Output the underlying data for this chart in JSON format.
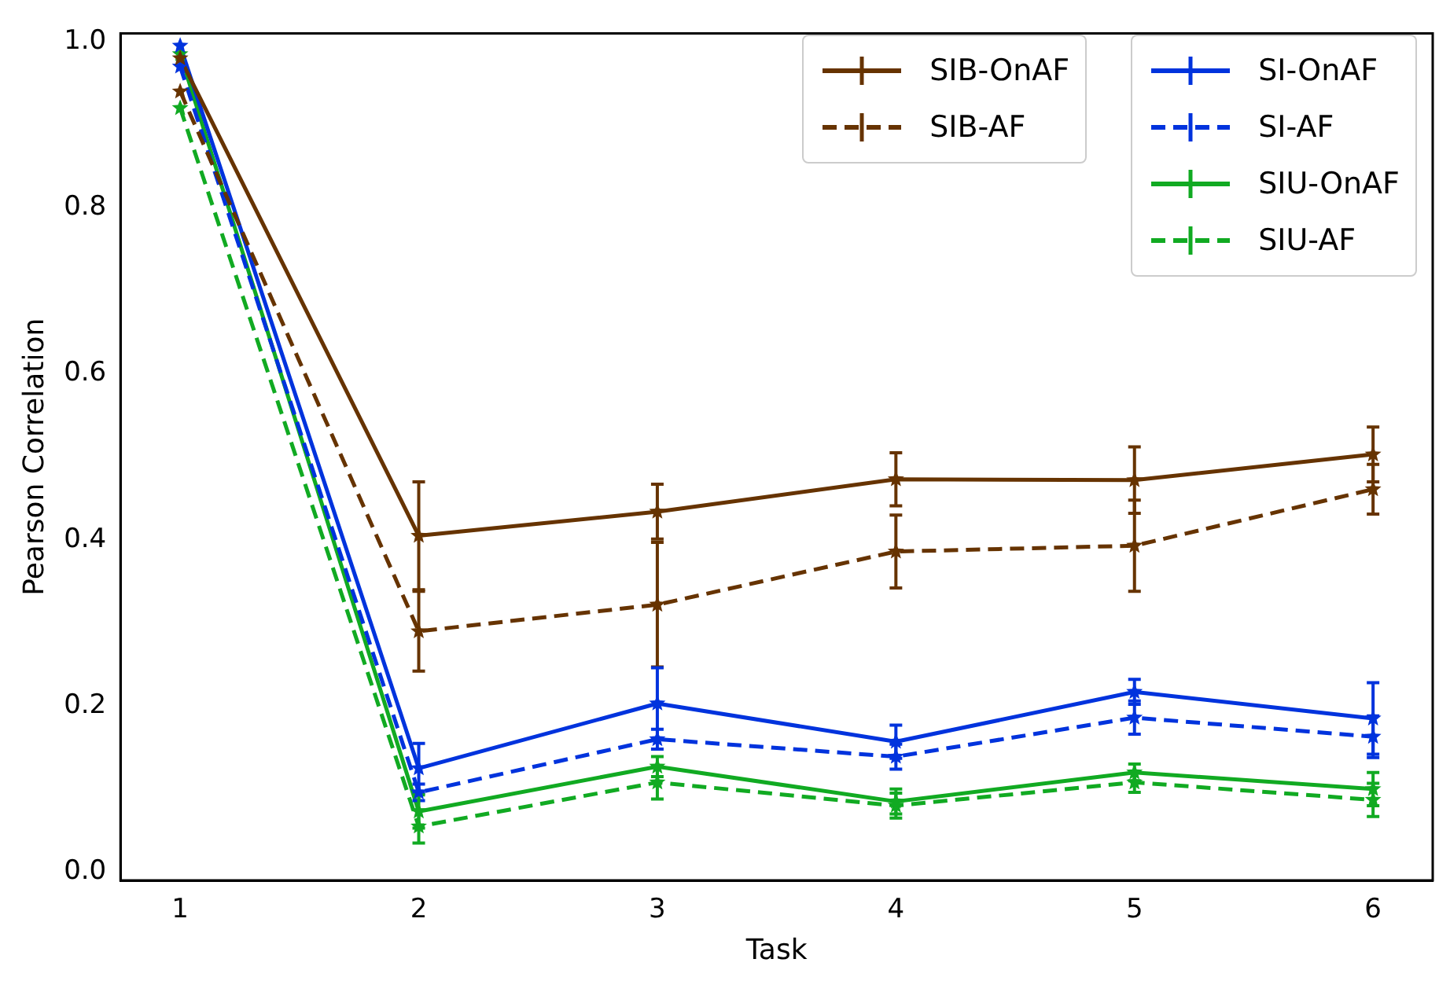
{
  "chart_data": {
    "type": "line",
    "xlabel": "Task",
    "ylabel": "Pearson Correlation",
    "x": [
      1,
      2,
      3,
      4,
      5,
      6
    ],
    "xlim": [
      0.75,
      6.25
    ],
    "xticks": [
      1,
      2,
      3,
      4,
      5,
      6
    ],
    "ylim": [
      -0.01,
      1.01
    ],
    "yticks": [
      {
        "value": 0,
        "label": "0.0"
      },
      {
        "value": 0.2,
        "label": "0.2"
      },
      {
        "value": 0.4,
        "label": "0.4"
      },
      {
        "value": 0.6,
        "label": "0.6"
      },
      {
        "value": 0.8,
        "label": "0.8"
      },
      {
        "value": 1,
        "label": "1.0"
      }
    ],
    "grid": false,
    "legend": "top right",
    "marker": "star",
    "series": [
      {
        "name": "SIB-OnAF",
        "color": "#663300",
        "line_style": "solid",
        "values": [
          0.98,
          0.405,
          0.434,
          0.473,
          0.472,
          0.503
        ],
        "errors": [
          null,
          0.065,
          0.033,
          0.032,
          0.04,
          0.033
        ]
      },
      {
        "name": "SIB-AF",
        "color": "#663300",
        "line_style": "dashed",
        "values": [
          0.94,
          0.29,
          0.322,
          0.386,
          0.393,
          0.461
        ],
        "errors": [
          null,
          0.048,
          0.075,
          0.044,
          0.055,
          0.03
        ]
      },
      {
        "name": "SI-OnAF",
        "color": "#0033dd",
        "line_style": "solid",
        "values": [
          0.995,
          0.125,
          0.203,
          0.157,
          0.217,
          0.185
        ],
        "errors": [
          null,
          0.03,
          0.043,
          0.02,
          0.015,
          0.043
        ]
      },
      {
        "name": "SI-AF",
        "color": "#0033dd",
        "line_style": "dashed",
        "values": [
          0.97,
          0.096,
          0.16,
          0.139,
          0.186,
          0.163
        ],
        "errors": [
          null,
          0.01,
          0.012,
          0.015,
          0.02,
          0.025
        ]
      },
      {
        "name": "SIU-OnAF",
        "color": "#11aa22",
        "line_style": "solid",
        "values": [
          0.985,
          0.073,
          0.127,
          0.085,
          0.12,
          0.1
        ],
        "errors": [
          null,
          0.02,
          0.012,
          0.015,
          0.01,
          0.02
        ]
      },
      {
        "name": "SIU-AF",
        "color": "#11aa22",
        "line_style": "dashed",
        "values": [
          0.92,
          0.055,
          0.108,
          0.08,
          0.108,
          0.087
        ],
        "errors": [
          null,
          0.02,
          0.02,
          0.015,
          0.012,
          0.02
        ]
      }
    ]
  }
}
